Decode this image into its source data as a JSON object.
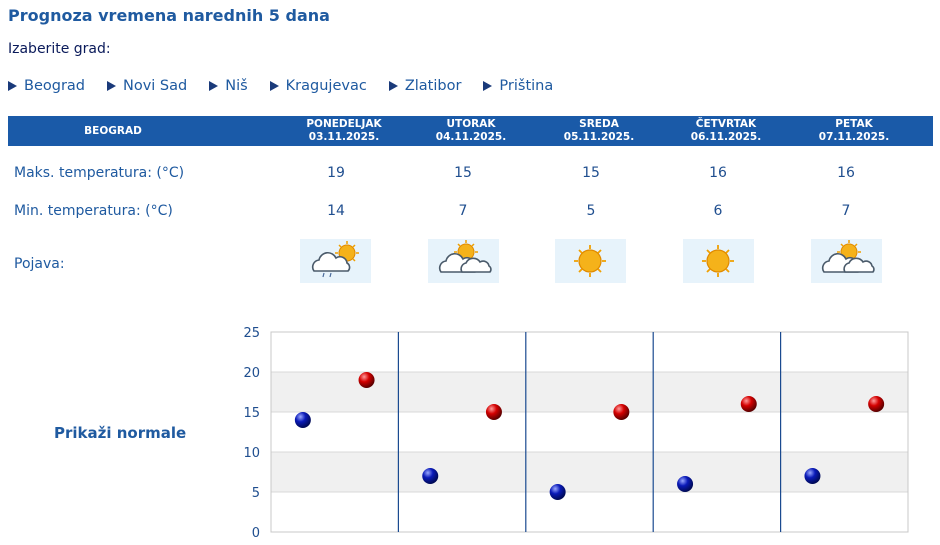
{
  "page_title": "Prognoza vremena narednih 5 dana",
  "city_prompt": "Izaberite grad:",
  "cities": [
    "Beograd",
    "Novi Sad",
    "Niš",
    "Kragujevac",
    "Zlatibor",
    "Priština"
  ],
  "table": {
    "city": "BEOGRAD",
    "days": [
      {
        "name": "PONEDELJAK",
        "date": "03.11.2025.",
        "max": "19",
        "min": "14",
        "icon": "cloud-sun-drizzle-icon"
      },
      {
        "name": "UTORAK",
        "date": "04.11.2025.",
        "max": "15",
        "min": "7",
        "icon": "partly-cloudy-icon"
      },
      {
        "name": "SREDA",
        "date": "05.11.2025.",
        "max": "15",
        "min": "5",
        "icon": "sunny-icon"
      },
      {
        "name": "ČETVRTAK",
        "date": "06.11.2025.",
        "max": "16",
        "min": "6",
        "icon": "sunny-icon"
      },
      {
        "name": "PETAK",
        "date": "07.11.2025.",
        "max": "16",
        "min": "7",
        "icon": "partly-cloudy-icon"
      }
    ],
    "row_labels": {
      "max": "Maks. temperatura: (°C)",
      "min": "Min. temperatura: (°C)",
      "phenomenon": "Pojava:"
    }
  },
  "normals_link": "Prikaži normale",
  "colors": {
    "header_bg": "#1a5aa8",
    "max_point": "#cc0000",
    "min_point": "#0a1ab0",
    "icon_bg": "#e7f3fb"
  },
  "chart_data": {
    "type": "scatter",
    "categories": [
      "03.11.2025.",
      "04.11.2025.",
      "05.11.2025.",
      "06.11.2025.",
      "07.11.2025."
    ],
    "series": [
      {
        "values": [
          14,
          7,
          5,
          6,
          7
        ],
        "color": "#0a1ab0"
      },
      {
        "values": [
          19,
          15,
          15,
          16,
          16
        ],
        "color": "#cc0000"
      }
    ],
    "ylim": [
      0,
      25
    ],
    "yticks": [
      0,
      5,
      10,
      15,
      20,
      25
    ],
    "grid": true
  }
}
